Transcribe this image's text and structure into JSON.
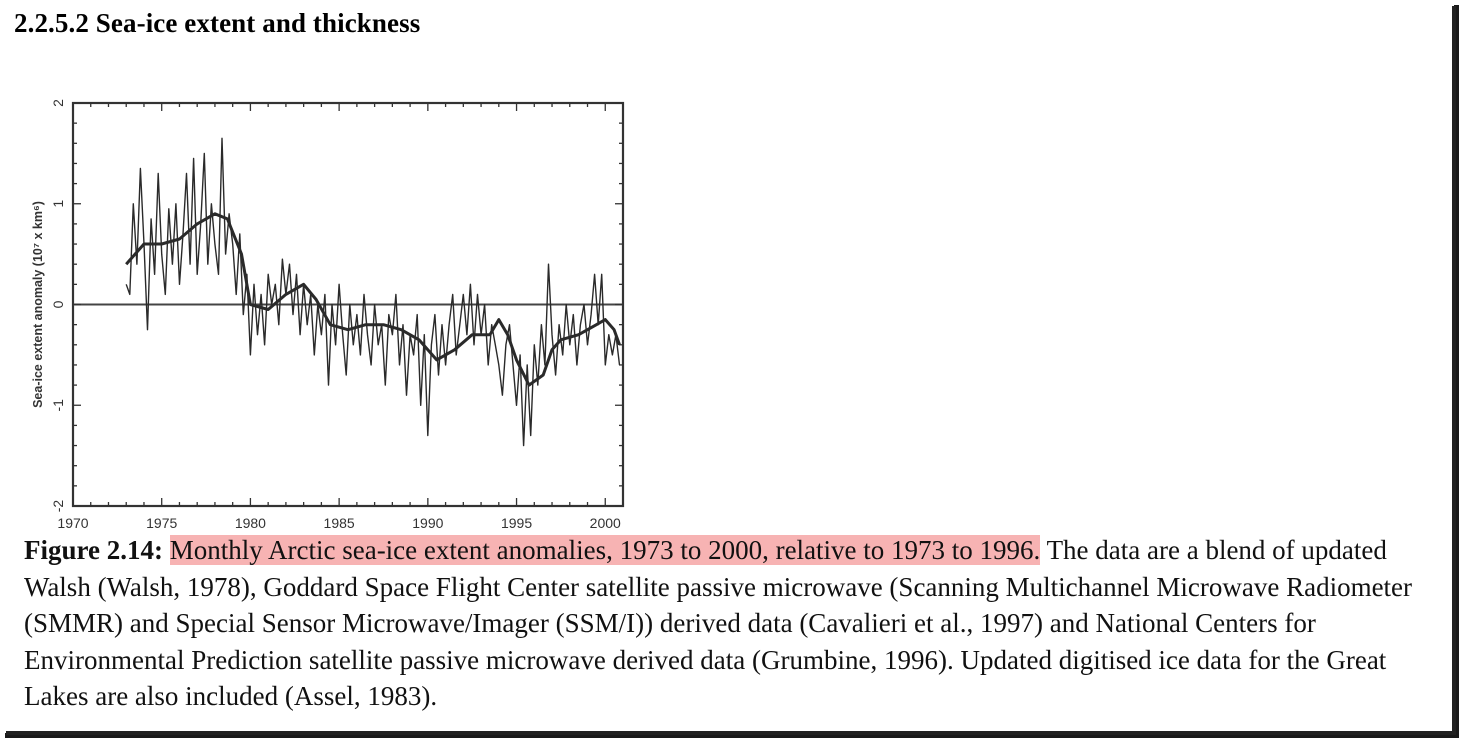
{
  "section": {
    "heading": "2.2.5.2 Sea-ice extent and thickness"
  },
  "caption": {
    "label": "Figure 2.14:",
    "highlighted": "Monthly Arctic sea-ice extent anomalies, 1973 to 2000, relative to 1973 to 1996.",
    "rest": "The data are a blend of updated Walsh (Walsh, 1978), Goddard Space Flight Center satellite passive microwave (Scanning Multichannel Microwave Radiometer (SMMR) and Special Sensor Microwave/Imager (SSM/I)) derived data (Cavalieri et al., 1997) and National Centers for Environmental Prediction satellite passive microwave derived data (Grumbine, 1996). Updated digitised ice data for the Great Lakes are also included (Assel, 1983).",
    "highlight_color": "#f7b3b3"
  },
  "chart_data": {
    "type": "line",
    "ylabel": "Sea-ice extent anomaly (10⁷ x km⁶)",
    "xlabel": "",
    "xlim": [
      1970,
      2001
    ],
    "ylim": [
      -2,
      2
    ],
    "x_ticks": [
      1970,
      1975,
      1980,
      1985,
      1990,
      1995,
      2000
    ],
    "y_ticks": [
      2,
      1,
      0,
      -1,
      -2
    ],
    "zero_line": true,
    "line_color": "#2a2a2a",
    "series": [
      {
        "style": "monthly",
        "x": [
          1973.0,
          1973.2,
          1973.4,
          1973.6,
          1973.8,
          1974.0,
          1974.2,
          1974.4,
          1974.6,
          1974.8,
          1975.0,
          1975.2,
          1975.4,
          1975.6,
          1975.8,
          1976.0,
          1976.2,
          1976.4,
          1976.6,
          1976.8,
          1977.0,
          1977.2,
          1977.4,
          1977.6,
          1977.8,
          1978.0,
          1978.2,
          1978.4,
          1978.6,
          1978.8,
          1979.0,
          1979.2,
          1979.4,
          1979.6,
          1979.8,
          1980.0,
          1980.2,
          1980.4,
          1980.6,
          1980.8,
          1981.0,
          1981.2,
          1981.4,
          1981.6,
          1981.8,
          1982.0,
          1982.2,
          1982.4,
          1982.6,
          1982.8,
          1983.0,
          1983.2,
          1983.4,
          1983.6,
          1983.8,
          1984.0,
          1984.2,
          1984.4,
          1984.6,
          1984.8,
          1985.0,
          1985.2,
          1985.4,
          1985.6,
          1985.8,
          1986.0,
          1986.2,
          1986.4,
          1986.6,
          1986.8,
          1987.0,
          1987.2,
          1987.4,
          1987.6,
          1987.8,
          1988.0,
          1988.2,
          1988.4,
          1988.6,
          1988.8,
          1989.0,
          1989.2,
          1989.4,
          1989.6,
          1989.8,
          1990.0,
          1990.2,
          1990.4,
          1990.6,
          1990.8,
          1991.0,
          1991.2,
          1991.4,
          1991.6,
          1991.8,
          1992.0,
          1992.2,
          1992.4,
          1992.6,
          1992.8,
          1993.0,
          1993.2,
          1993.4,
          1993.6,
          1993.8,
          1994.0,
          1994.2,
          1994.4,
          1994.6,
          1994.8,
          1995.0,
          1995.2,
          1995.4,
          1995.6,
          1995.8,
          1996.0,
          1996.2,
          1996.4,
          1996.6,
          1996.8,
          1997.0,
          1997.2,
          1997.4,
          1997.6,
          1997.8,
          1998.0,
          1998.2,
          1998.4,
          1998.6,
          1998.8,
          1999.0,
          1999.2,
          1999.4,
          1999.6,
          1999.8,
          2000.0,
          2000.2,
          2000.4,
          2000.6,
          2000.8
        ],
        "values": [
          0.2,
          0.1,
          1.0,
          0.4,
          1.35,
          0.6,
          -0.25,
          0.85,
          0.3,
          1.3,
          0.5,
          0.1,
          0.95,
          0.4,
          1.0,
          0.2,
          0.7,
          1.3,
          0.4,
          1.45,
          0.3,
          0.8,
          1.5,
          0.4,
          1.0,
          0.6,
          0.3,
          1.65,
          0.5,
          0.9,
          0.6,
          0.1,
          0.7,
          -0.1,
          0.3,
          -0.5,
          0.2,
          -0.3,
          0.1,
          -0.4,
          0.3,
          0.0,
          0.2,
          -0.2,
          0.45,
          0.1,
          0.4,
          -0.1,
          0.3,
          -0.3,
          0.2,
          -0.2,
          0.1,
          -0.5,
          0.0,
          -0.3,
          0.1,
          -0.8,
          0.0,
          -0.4,
          0.2,
          -0.3,
          -0.7,
          0.0,
          -0.4,
          -0.1,
          -0.5,
          0.1,
          -0.3,
          -0.6,
          0.0,
          -0.4,
          -0.2,
          -0.8,
          -0.1,
          -0.3,
          0.1,
          -0.6,
          -0.2,
          -0.9,
          -0.3,
          -0.5,
          -0.1,
          -1.0,
          -0.3,
          -1.3,
          -0.4,
          -0.1,
          -0.7,
          -0.2,
          -0.6,
          -0.2,
          0.1,
          -0.5,
          -0.2,
          0.1,
          -0.3,
          0.2,
          -0.4,
          0.1,
          -0.3,
          0.0,
          -0.6,
          -0.2,
          -0.4,
          -0.6,
          -0.9,
          -0.4,
          -0.2,
          -0.6,
          -1.0,
          -0.5,
          -1.4,
          -0.6,
          -1.3,
          -0.4,
          -0.8,
          -0.2,
          -0.6,
          0.4,
          -0.3,
          -0.7,
          -0.2,
          -0.5,
          0.0,
          -0.4,
          -0.1,
          -0.6,
          -0.2,
          0.0,
          -0.4,
          -0.1,
          0.3,
          -0.2,
          0.3,
          -0.6,
          -0.3,
          -0.5,
          -0.3,
          -0.6
        ]
      },
      {
        "style": "smoothed",
        "x": [
          1973.0,
          1974.0,
          1975.0,
          1976.0,
          1977.0,
          1978.0,
          1978.7,
          1979.5,
          1980.0,
          1981.0,
          1982.0,
          1983.0,
          1983.7,
          1984.5,
          1985.5,
          1986.5,
          1987.5,
          1988.5,
          1989.5,
          1990.5,
          1991.5,
          1992.5,
          1993.5,
          1994.0,
          1994.5,
          1995.0,
          1995.7,
          1996.5,
          1997.0,
          1997.5,
          1998.5,
          1999.5,
          2000.0,
          2000.5,
          2000.8
        ],
        "values": [
          0.4,
          0.6,
          0.6,
          0.65,
          0.8,
          0.9,
          0.85,
          0.5,
          0.0,
          -0.05,
          0.1,
          0.2,
          0.05,
          -0.2,
          -0.25,
          -0.2,
          -0.2,
          -0.25,
          -0.35,
          -0.55,
          -0.45,
          -0.3,
          -0.3,
          -0.15,
          -0.3,
          -0.55,
          -0.8,
          -0.7,
          -0.45,
          -0.35,
          -0.3,
          -0.2,
          -0.15,
          -0.25,
          -0.4
        ]
      }
    ]
  }
}
